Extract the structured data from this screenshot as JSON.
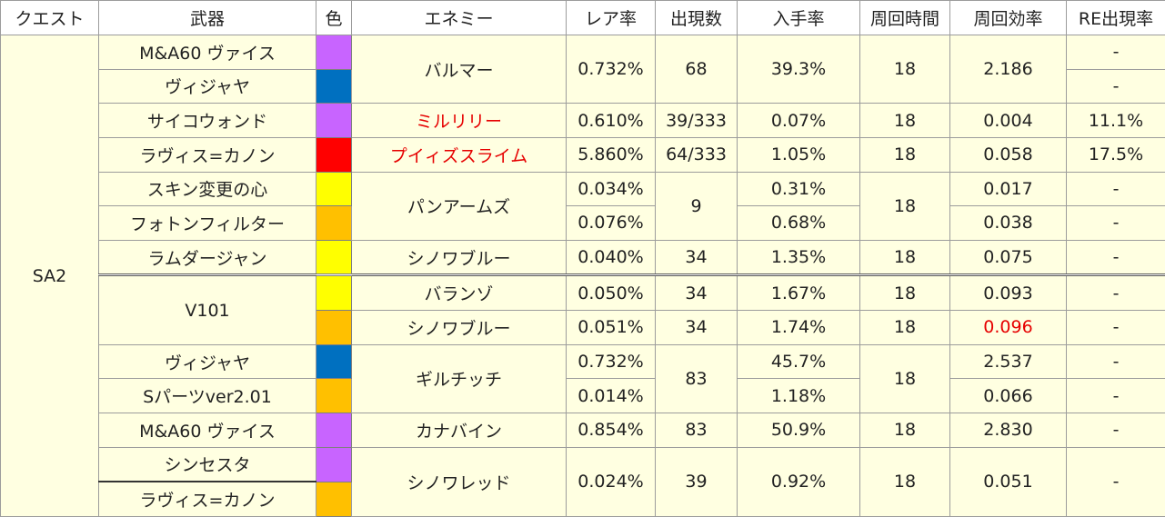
{
  "colors": {
    "purple": "#c864ff",
    "blue": "#0070c0",
    "red": "#ff0000",
    "yellow": "#ffff00",
    "orange": "#ffc000",
    "cell_bg": "#ffffe1",
    "highlight_text": "#e60000"
  },
  "headers": {
    "quest": "クエスト",
    "weapon": "武器",
    "color": "色",
    "enemy": "エネミー",
    "rare_rate": "レア率",
    "appear": "出現数",
    "obtain_rate": "入手率",
    "loop_time": "周回時間",
    "loop_eff": "周回効率",
    "re_rate": "RE出現率"
  },
  "quest": "SA2",
  "rows": [
    {
      "weapon": "M&A60 ヴァイス",
      "color": "purple",
      "enemy": "バルマー",
      "rare": "0.732%",
      "count": "68",
      "obtain": "39.3%",
      "time": "18",
      "eff": "2.186",
      "re": "-"
    },
    {
      "weapon": "ヴィジャヤ",
      "color": "blue",
      "re": "-"
    },
    {
      "weapon": "サイコウォンド",
      "color": "purple",
      "enemy": "ミルリリー",
      "rare": "0.610%",
      "count": "39/333",
      "obtain": "0.07%",
      "time": "18",
      "eff": "0.004",
      "re": "11.1%"
    },
    {
      "weapon": "ラヴィス=カノン",
      "color": "red",
      "enemy": "プイィズスライム",
      "rare": "5.860%",
      "count": "64/333",
      "obtain": "1.05%",
      "time": "18",
      "eff": "0.058",
      "re": "17.5%"
    },
    {
      "weapon": "スキン変更の心",
      "color": "yellow",
      "enemy": "パンアームズ",
      "rare": "0.034%",
      "count": "9",
      "obtain": "0.31%",
      "time": "18",
      "eff": "0.017",
      "re": "-"
    },
    {
      "weapon": "フォトンフィルター",
      "color": "orange",
      "rare": "0.076%",
      "obtain": "0.68%",
      "eff": "0.038",
      "re": "-"
    },
    {
      "weapon": "ラムダージャン",
      "color": "yellow",
      "enemy": "シノワブルー",
      "rare": "0.040%",
      "count": "34",
      "obtain": "1.35%",
      "time": "18",
      "eff": "0.075",
      "re": "-"
    },
    {
      "weapon": "V101",
      "color": "yellow",
      "enemy": "バランゾ",
      "rare": "0.050%",
      "count": "34",
      "obtain": "1.67%",
      "time": "18",
      "eff": "0.093",
      "re": "-"
    },
    {
      "color": "orange",
      "enemy": "シノワブルー",
      "rare": "0.051%",
      "count": "34",
      "obtain": "1.74%",
      "time": "18",
      "eff": "0.096",
      "re": "-"
    },
    {
      "weapon": "ヴィジャヤ",
      "color": "blue",
      "enemy": "ギルチッチ",
      "rare": "0.732%",
      "count": "83",
      "obtain": "45.7%",
      "time": "18",
      "eff": "2.537",
      "re": "-"
    },
    {
      "weapon": "Sパーツver2.01",
      "color": "orange",
      "rare": "0.014%",
      "obtain": "1.18%",
      "eff": "0.066",
      "re": "-"
    },
    {
      "weapon": "M&A60 ヴァイス",
      "color": "purple",
      "enemy": "カナバイン",
      "rare": "0.854%",
      "count": "83",
      "obtain": "50.9%",
      "time": "18",
      "eff": "2.830",
      "re": "-"
    },
    {
      "weapon": "シンセスタ",
      "color": "purple",
      "enemy": "シノワレッド",
      "rare": "0.024%",
      "count": "39",
      "obtain": "0.92%",
      "time": "18",
      "eff": "0.051",
      "re": "-"
    },
    {
      "weapon": "ラヴィス=カノン",
      "color": "orange"
    }
  ]
}
